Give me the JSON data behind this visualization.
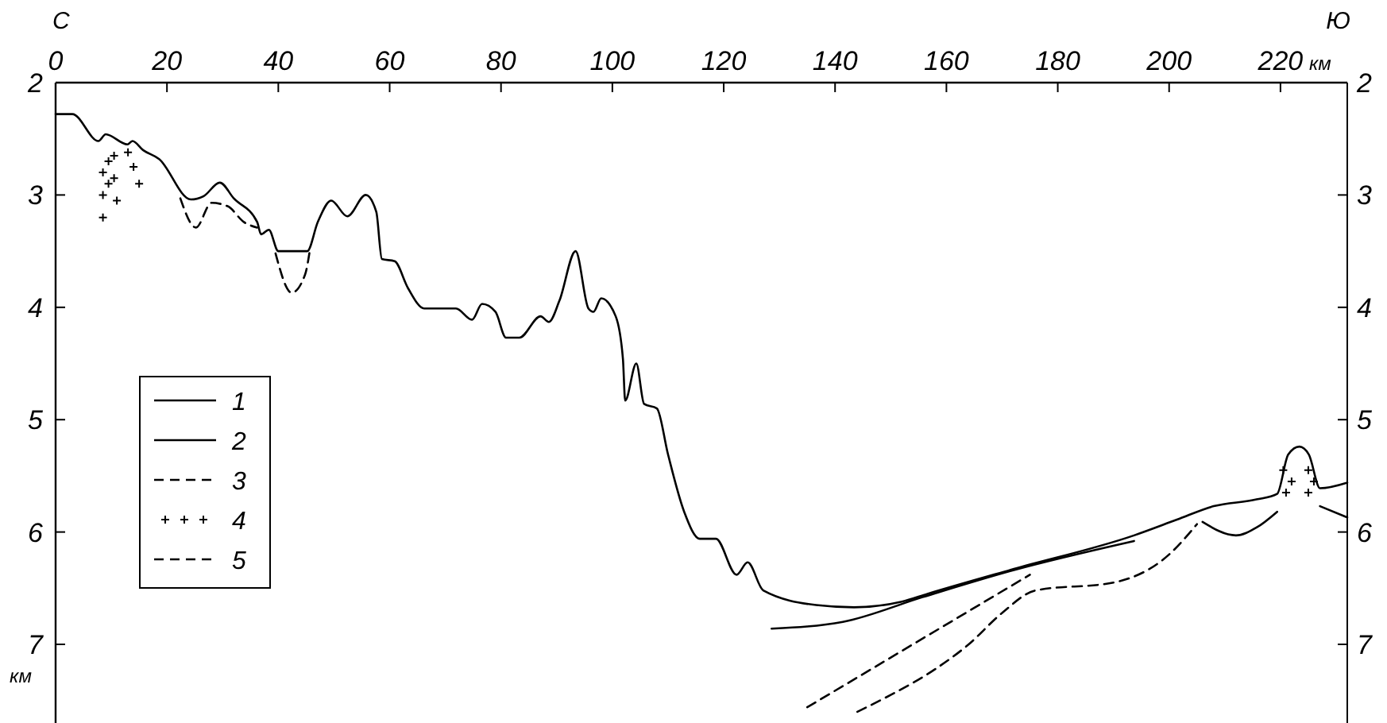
{
  "chart_data": {
    "type": "line",
    "xlabel": "км",
    "ylabel": "км",
    "annotations": [
      "С",
      "Ю"
    ],
    "xlim": [
      0,
      232
    ],
    "xticks": [
      0,
      20,
      40,
      60,
      80,
      100,
      120,
      140,
      160,
      180,
      200,
      220
    ],
    "ylim": [
      7.7,
      2
    ],
    "yticks": [
      2,
      3,
      4,
      5,
      6,
      7
    ],
    "y2lim": [
      7.7,
      2
    ],
    "y2ticks": [
      2,
      3,
      4,
      5,
      6,
      7
    ],
    "grid": false,
    "legend": "left",
    "series": [
      {
        "name": "1",
        "color": "#000000",
        "line_style": "solid",
        "x": [
          0,
          3,
          7.7,
          9,
          12.9,
          13.8,
          15.7,
          18.6,
          24.3,
          26.6,
          29.5,
          32,
          36.2,
          36.9,
          38.3,
          40,
          45.2,
          47.1,
          49.5,
          52.4,
          55.7,
          57.6,
          58.6,
          60.9,
          63.3,
          66.2,
          71.9,
          74.8,
          76.6,
          79,
          80.9,
          83.3,
          87.1,
          88.6,
          90.5,
          93.4,
          95.7,
          96.6,
          98,
          100.6,
          101.9,
          102.3,
          104.3,
          105.7,
          108,
          110,
          112.9,
          115.7,
          118.6,
          122.3,
          124.3,
          127.1,
          136.6,
          143.4,
          152,
          156.6,
          172,
          193.7,
          201.4,
          208,
          215.7,
          219.4,
          221.4,
          223.4,
          225.1,
          227.1,
          232
        ],
        "values": [
          2.28,
          2.28,
          2.52,
          2.46,
          2.55,
          2.52,
          2.6,
          2.68,
          3.04,
          3.01,
          2.89,
          3.03,
          3.24,
          3.35,
          3.31,
          3.5,
          3.5,
          3.24,
          3.05,
          3.19,
          3.0,
          3.15,
          3.57,
          3.59,
          3.83,
          4.01,
          4.01,
          4.11,
          3.97,
          4.04,
          4.27,
          4.27,
          4.08,
          4.13,
          3.94,
          3.5,
          4.01,
          4.04,
          3.92,
          4.08,
          4.46,
          4.83,
          4.5,
          4.86,
          4.9,
          5.31,
          5.82,
          6.06,
          6.06,
          6.38,
          6.27,
          6.52,
          6.65,
          6.67,
          6.62,
          6.55,
          6.33,
          6.03,
          5.89,
          5.77,
          5.71,
          5.66,
          5.31,
          5.24,
          5.31,
          5.61,
          5.56
        ]
      },
      {
        "name": "2",
        "color": "#000000",
        "line_style": "solid",
        "x": [
          128.6,
          141.4,
          155.7,
          172,
          193.7,
          200,
          206,
          212,
          215.7,
          219.4,
          223,
          227.1,
          232
        ],
        "values": [
          6.86,
          6.8,
          6.58,
          6.34,
          6.08,
          null,
          5.91,
          6.03,
          5.96,
          5.82,
          null,
          5.77,
          5.87
        ]
      },
      {
        "name": "3",
        "color": "#000000",
        "line_style": "dashed",
        "x": [
          22.4,
          25.2,
          28,
          30.9,
          33.8,
          36.2,
          38,
          39.5,
          42.4,
          44.8,
          45.7
        ],
        "values": [
          3.03,
          3.29,
          3.07,
          3.1,
          3.24,
          3.29,
          null,
          3.52,
          3.87,
          3.71,
          3.48
        ]
      },
      {
        "name": "4",
        "type": "scatter",
        "marker": "cross",
        "color": "#000000",
        "x": [
          8.5,
          8.5,
          8.5,
          9.5,
          9.5,
          10.5,
          10.5,
          11,
          13,
          14,
          15,
          220.5,
          221,
          222,
          225,
          225,
          226
        ],
        "values": [
          2.8,
          3.0,
          3.2,
          2.7,
          2.9,
          2.65,
          2.85,
          3.05,
          2.62,
          2.75,
          2.9,
          5.45,
          5.65,
          5.55,
          5.45,
          5.65,
          5.55
        ]
      },
      {
        "name": "5",
        "color": "#000000",
        "line_style": "dashed",
        "x": [
          135,
          175,
          null,
          144,
          150,
          158,
          164,
          170,
          176,
          190,
          200,
          205
        ],
        "values": [
          7.56,
          6.38,
          null,
          7.6,
          7.45,
          7.22,
          7.0,
          6.72,
          6.52,
          6.45,
          6.2,
          5.93
        ]
      }
    ]
  }
}
